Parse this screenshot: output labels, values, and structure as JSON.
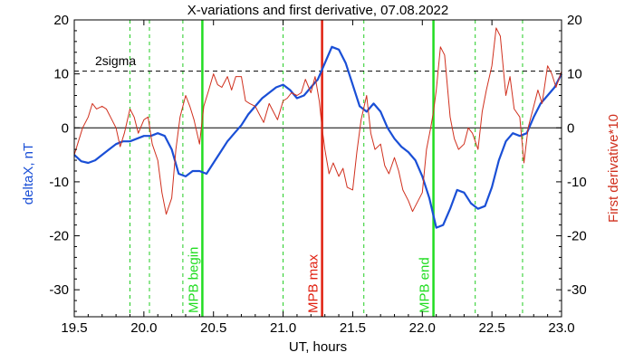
{
  "chart_data": {
    "type": "line",
    "title": "X-variations and first derivative, 07.08.2022",
    "xlabel": "UT, hours",
    "ylabel_left": "deltaX, nT",
    "ylabel_right": "First derivative*10",
    "xlim": [
      19.5,
      23.0
    ],
    "ylim": [
      -35,
      20
    ],
    "x_ticks": [
      "19.5",
      "20.0",
      "20.5",
      "21.0",
      "21.5",
      "22.0",
      "22.5",
      "23.0"
    ],
    "x_tick_values": [
      19.5,
      20.0,
      20.5,
      21.0,
      21.5,
      22.0,
      22.5,
      23.0
    ],
    "y_ticks": [
      "-30",
      "-20",
      "-10",
      "0",
      "10",
      "20"
    ],
    "y_tick_values": [
      -30,
      -20,
      -10,
      0,
      10,
      20
    ],
    "sigma_label": "2sigma",
    "sigma_level": 10.5,
    "zero_level": 0,
    "colors": {
      "deltaX": "#1a4fd6",
      "derivative": "#d0301e",
      "mpb_boundary": "#22dd22",
      "mpb_max": "#e02010",
      "green_dash": "#22cc22"
    },
    "markers": [
      {
        "label": "MPB begin",
        "x": 20.42,
        "kind": "boundary"
      },
      {
        "label": "MPB max",
        "x": 21.28,
        "kind": "max"
      },
      {
        "label": "MPB end",
        "x": 22.08,
        "kind": "boundary"
      }
    ],
    "dashed_verticals": [
      19.9,
      20.04,
      20.28,
      21.0,
      21.58,
      22.38,
      22.72
    ],
    "series": [
      {
        "name": "deltaX, nT",
        "x": [
          19.5,
          19.55,
          19.6,
          19.65,
          19.7,
          19.75,
          19.8,
          19.85,
          19.9,
          19.95,
          20.0,
          20.05,
          20.1,
          20.15,
          20.2,
          20.25,
          20.3,
          20.35,
          20.4,
          20.45,
          20.5,
          20.55,
          20.6,
          20.65,
          20.7,
          20.75,
          20.8,
          20.85,
          20.9,
          20.95,
          21.0,
          21.05,
          21.1,
          21.15,
          21.2,
          21.25,
          21.3,
          21.35,
          21.4,
          21.45,
          21.5,
          21.55,
          21.6,
          21.65,
          21.7,
          21.75,
          21.8,
          21.85,
          21.9,
          21.95,
          22.0,
          22.05,
          22.1,
          22.15,
          22.2,
          22.25,
          22.3,
          22.35,
          22.4,
          22.45,
          22.5,
          22.55,
          22.6,
          22.65,
          22.7,
          22.75,
          22.8,
          22.85,
          22.9,
          22.95,
          23.0
        ],
        "y": [
          -5.0,
          -6.2,
          -6.5,
          -6.0,
          -5.0,
          -4.0,
          -3.0,
          -2.5,
          -2.5,
          -2.0,
          -1.5,
          -1.5,
          -1.0,
          -1.5,
          -4.0,
          -8.5,
          -9.0,
          -8.0,
          -8.0,
          -8.5,
          -6.5,
          -4.5,
          -2.5,
          -1.0,
          0.5,
          2.5,
          4.0,
          5.5,
          6.5,
          7.5,
          8.0,
          7.0,
          5.5,
          6.0,
          7.5,
          9.0,
          12.0,
          15.0,
          14.5,
          12.0,
          8.0,
          4.0,
          3.0,
          4.5,
          3.0,
          0.0,
          -2.0,
          -3.5,
          -4.5,
          -6.0,
          -9.0,
          -13.0,
          -18.5,
          -18.0,
          -15.0,
          -11.5,
          -12.0,
          -14.0,
          -15.0,
          -14.5,
          -11.0,
          -6.0,
          -2.5,
          -1.0,
          -1.5,
          -1.0,
          2.0,
          4.5,
          6.0,
          7.5,
          10.0
        ]
      },
      {
        "name": "First derivative*10",
        "x": [
          19.5,
          19.53,
          19.56,
          19.6,
          19.63,
          19.66,
          19.7,
          19.73,
          19.76,
          19.8,
          19.83,
          19.86,
          19.9,
          19.93,
          19.96,
          20.0,
          20.03,
          20.06,
          20.1,
          20.13,
          20.16,
          20.2,
          20.23,
          20.26,
          20.3,
          20.33,
          20.36,
          20.4,
          20.43,
          20.46,
          20.5,
          20.53,
          20.56,
          20.6,
          20.63,
          20.66,
          20.7,
          20.73,
          20.76,
          20.8,
          20.83,
          20.86,
          20.9,
          20.93,
          20.96,
          21.0,
          21.03,
          21.06,
          21.1,
          21.13,
          21.16,
          21.2,
          21.23,
          21.26,
          21.28,
          21.3,
          21.33,
          21.36,
          21.4,
          21.43,
          21.46,
          21.5,
          21.53,
          21.56,
          21.6,
          21.63,
          21.66,
          21.7,
          21.73,
          21.76,
          21.8,
          21.83,
          21.86,
          21.9,
          21.93,
          21.96,
          22.0,
          22.03,
          22.06,
          22.08,
          22.1,
          22.13,
          22.16,
          22.2,
          22.23,
          22.26,
          22.3,
          22.33,
          22.36,
          22.4,
          22.43,
          22.46,
          22.5,
          22.53,
          22.56,
          22.6,
          22.63,
          22.66,
          22.7,
          22.73,
          22.76,
          22.8,
          22.83,
          22.86,
          22.9,
          22.93,
          22.96,
          23.0
        ],
        "y": [
          -5.0,
          -2.5,
          0.0,
          2.0,
          4.5,
          3.5,
          4.0,
          3.5,
          2.0,
          0.0,
          -3.5,
          -1.0,
          3.5,
          2.0,
          -1.0,
          1.5,
          2.0,
          -3.0,
          -6.0,
          -12.0,
          -16.0,
          -13.0,
          -4.0,
          2.0,
          6.0,
          4.0,
          1.5,
          -3.0,
          4.0,
          6.5,
          10.0,
          8.0,
          7.5,
          9.5,
          7.0,
          9.5,
          9.5,
          5.0,
          4.5,
          4.0,
          2.5,
          1.0,
          4.5,
          3.0,
          1.5,
          5.0,
          5.5,
          6.5,
          6.0,
          6.5,
          9.0,
          6.5,
          9.5,
          5.0,
          0.0,
          -4.0,
          -8.5,
          -6.5,
          -9.0,
          -7.5,
          -11.0,
          -11.5,
          -4.5,
          1.5,
          6.0,
          -1.0,
          -4.0,
          -3.0,
          -7.0,
          -8.5,
          -5.5,
          -8.0,
          -11.5,
          -13.5,
          -15.5,
          -14.0,
          -12.0,
          -4.0,
          0.0,
          3.0,
          7.0,
          15.0,
          13.5,
          2.0,
          -2.0,
          -4.0,
          -3.0,
          0.0,
          -1.0,
          -4.0,
          3.0,
          7.0,
          11.5,
          18.5,
          17.0,
          6.0,
          9.5,
          3.5,
          2.0,
          -6.5,
          0.0,
          4.0,
          7.0,
          4.5,
          11.5,
          10.0,
          7.5,
          10.5
        ]
      }
    ]
  }
}
